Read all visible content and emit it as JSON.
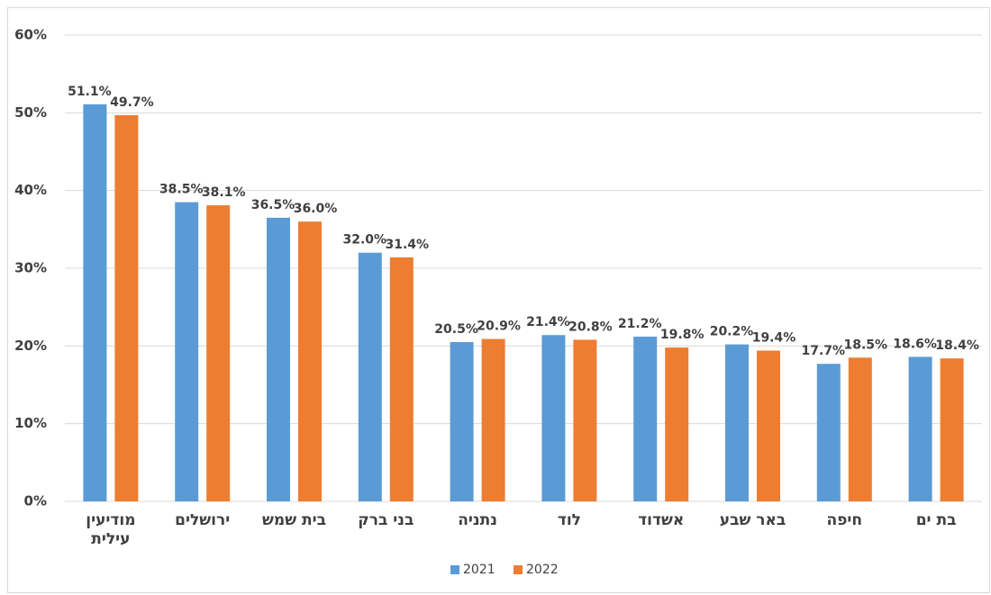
{
  "chart_data": {
    "type": "bar",
    "categories": [
      "מודיעין עילית",
      "ירושלים",
      "בית שמש",
      "בני ברק",
      "נתניה",
      "לוד",
      "אשדוד",
      "באר שבע",
      "חיפה",
      "בת ים"
    ],
    "series": [
      {
        "name": "2021",
        "color": "#5b9bd5",
        "values": [
          51.1,
          38.5,
          36.5,
          32.0,
          20.5,
          21.4,
          21.2,
          20.2,
          17.7,
          18.6
        ],
        "value_labels": [
          "51.1%",
          "38.5%",
          "36.5%",
          "32.0%",
          "20.5%",
          "21.4%",
          "21.2%",
          "20.2%",
          "17.7%",
          "18.6%"
        ]
      },
      {
        "name": "2022",
        "color": "#ed7d31",
        "values": [
          49.7,
          38.1,
          36.0,
          31.4,
          20.9,
          20.8,
          19.8,
          19.4,
          18.5,
          18.4
        ],
        "value_labels": [
          "49.7%",
          "38.1%",
          "36.0%",
          "31.4%",
          "20.9%",
          "20.8%",
          "19.8%",
          "19.4%",
          "18.5%",
          "18.4%"
        ]
      }
    ],
    "ylim": [
      0,
      60
    ],
    "yticks": [
      {
        "value": 0,
        "label": "0%"
      },
      {
        "value": 10,
        "label": "10%"
      },
      {
        "value": 20,
        "label": "20%"
      },
      {
        "value": 30,
        "label": "30%"
      },
      {
        "value": 40,
        "label": "40%"
      },
      {
        "value": 50,
        "label": "50%"
      },
      {
        "value": 60,
        "label": "60%"
      }
    ],
    "grid": true,
    "legend": "bottom"
  }
}
